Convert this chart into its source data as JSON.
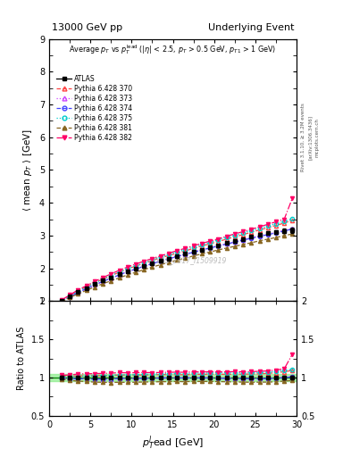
{
  "title_left": "13000 GeV pp",
  "title_right": "Underlying Event",
  "xlabel": "p_{T}^{l}ead [GeV]",
  "ylabel_main": "<mean p_T> [GeV]",
  "ylabel_ratio": "Ratio to ATLAS",
  "watermark": "ATLAS_2017_I1509919",
  "x_data": [
    1.5,
    2.5,
    3.5,
    4.5,
    5.5,
    6.5,
    7.5,
    8.5,
    9.5,
    10.5,
    11.5,
    12.5,
    13.5,
    14.5,
    15.5,
    16.5,
    17.5,
    18.5,
    19.5,
    20.5,
    21.5,
    22.5,
    23.5,
    24.5,
    25.5,
    26.5,
    27.5,
    28.5,
    29.5
  ],
  "atlas_y": [
    1.0,
    1.15,
    1.28,
    1.4,
    1.52,
    1.63,
    1.73,
    1.82,
    1.92,
    2.0,
    2.08,
    2.16,
    2.23,
    2.3,
    2.37,
    2.44,
    2.5,
    2.57,
    2.63,
    2.7,
    2.77,
    2.83,
    2.9,
    2.96,
    3.02,
    3.07,
    3.11,
    3.14,
    3.17
  ],
  "atlas_yerr": [
    0.02,
    0.02,
    0.02,
    0.02,
    0.02,
    0.02,
    0.02,
    0.02,
    0.02,
    0.02,
    0.02,
    0.02,
    0.02,
    0.02,
    0.02,
    0.02,
    0.03,
    0.03,
    0.03,
    0.03,
    0.03,
    0.04,
    0.04,
    0.04,
    0.05,
    0.05,
    0.05,
    0.07,
    0.08
  ],
  "mc_370_y": [
    1.02,
    1.17,
    1.31,
    1.43,
    1.56,
    1.67,
    1.78,
    1.88,
    1.98,
    2.07,
    2.15,
    2.24,
    2.32,
    2.39,
    2.46,
    2.53,
    2.61,
    2.68,
    2.75,
    2.82,
    2.89,
    2.96,
    3.03,
    3.1,
    3.17,
    3.24,
    3.31,
    3.38,
    3.47
  ],
  "mc_373_y": [
    1.0,
    1.14,
    1.26,
    1.38,
    1.49,
    1.6,
    1.7,
    1.8,
    1.9,
    1.98,
    2.07,
    2.15,
    2.23,
    2.3,
    2.37,
    2.43,
    2.5,
    2.56,
    2.63,
    2.69,
    2.75,
    2.81,
    2.87,
    2.93,
    2.99,
    3.04,
    3.1,
    3.16,
    3.22
  ],
  "mc_374_y": [
    0.99,
    1.13,
    1.26,
    1.38,
    1.49,
    1.6,
    1.7,
    1.8,
    1.9,
    1.98,
    2.06,
    2.14,
    2.22,
    2.29,
    2.36,
    2.43,
    2.49,
    2.56,
    2.62,
    2.68,
    2.74,
    2.8,
    2.86,
    2.92,
    2.97,
    3.03,
    3.08,
    3.14,
    3.2
  ],
  "mc_375_y": [
    1.01,
    1.16,
    1.3,
    1.43,
    1.55,
    1.67,
    1.78,
    1.89,
    1.99,
    2.08,
    2.17,
    2.26,
    2.34,
    2.42,
    2.5,
    2.57,
    2.65,
    2.72,
    2.79,
    2.87,
    2.94,
    3.01,
    3.08,
    3.15,
    3.22,
    3.29,
    3.36,
    3.43,
    3.52
  ],
  "mc_381_y": [
    0.98,
    1.11,
    1.22,
    1.33,
    1.43,
    1.53,
    1.62,
    1.71,
    1.8,
    1.88,
    1.96,
    2.04,
    2.11,
    2.18,
    2.25,
    2.31,
    2.38,
    2.44,
    2.5,
    2.56,
    2.62,
    2.67,
    2.73,
    2.78,
    2.84,
    2.89,
    2.94,
    3.0,
    3.05
  ],
  "mc_382_y": [
    1.03,
    1.19,
    1.34,
    1.47,
    1.6,
    1.72,
    1.83,
    1.94,
    2.04,
    2.13,
    2.22,
    2.3,
    2.38,
    2.46,
    2.54,
    2.61,
    2.69,
    2.76,
    2.83,
    2.9,
    2.98,
    3.05,
    3.12,
    3.19,
    3.27,
    3.34,
    3.42,
    3.5,
    4.15
  ],
  "colors": {
    "370": "#ff4444",
    "373": "#cc44ff",
    "374": "#4444ff",
    "375": "#00cccc",
    "381": "#886622",
    "382": "#ff0066"
  },
  "ratio_band_color": "#90ee90",
  "ylim_main": [
    1.0,
    9.0
  ],
  "ylim_ratio": [
    0.5,
    2.0
  ],
  "xlim": [
    0,
    30
  ],
  "yticks_main": [
    1,
    2,
    3,
    4,
    5,
    6,
    7,
    8,
    9
  ],
  "yticks_ratio": [
    0.5,
    1.0,
    1.5,
    2.0
  ]
}
